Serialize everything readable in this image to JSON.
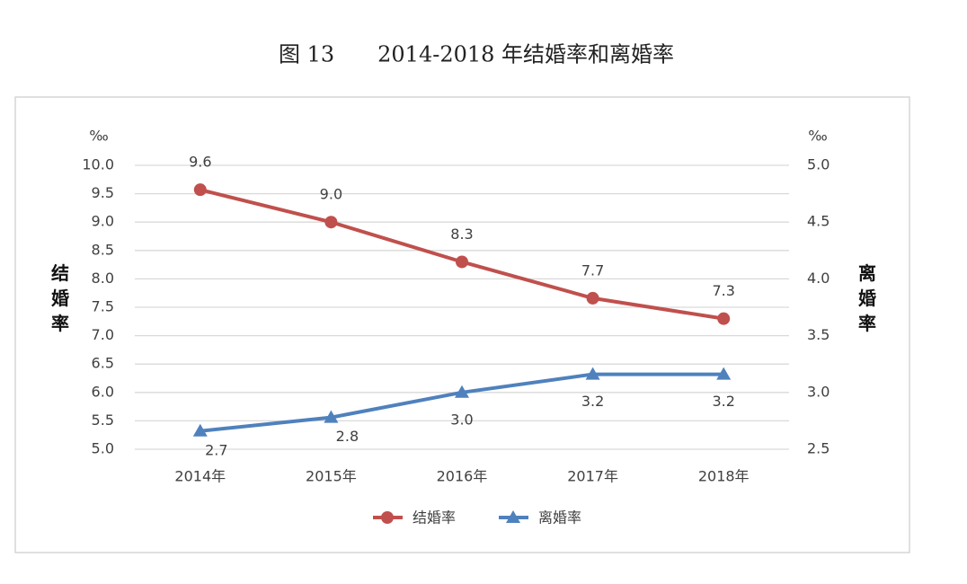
{
  "chart_data": {
    "type": "line",
    "title": "图 13　　2014-2018 年结婚率和离婚率",
    "ylabel": "结婚率",
    "y2label": "离婚率",
    "yunit": "‰",
    "y2unit": "‰",
    "categories": [
      "2014年",
      "2015年",
      "2016年",
      "2017年",
      "2018年"
    ],
    "series": [
      {
        "name": "结婚率",
        "color": "#c0504d",
        "marker": "circle",
        "values": [
          9.57,
          9.0,
          8.3,
          7.66,
          7.3
        ],
        "value_labels": [
          "9.6",
          "9.0",
          "8.3",
          "7.7",
          "7.3"
        ]
      },
      {
        "name": "离婚率",
        "color": "#4f81bd",
        "marker": "triangle",
        "axis": "y2",
        "values": [
          2.66,
          2.78,
          3.0,
          3.16,
          3.16
        ],
        "value_labels": [
          "2.7",
          "2.8",
          "3.0",
          "3.2",
          "3.2"
        ]
      }
    ],
    "ylim": [
      5,
      10
    ],
    "yticks": [
      {
        "value": 5,
        "label": "5.0"
      },
      5.5,
      {
        "value": 6,
        "label": "6.0"
      },
      6.5,
      {
        "value": 7,
        "label": "7.0"
      },
      7.5,
      {
        "value": 8,
        "label": "8.0"
      },
      8.5,
      {
        "value": 9,
        "label": "9.0"
      },
      9.5,
      {
        "value": 10,
        "label": "10.0"
      }
    ],
    "y2lim": [
      2.5,
      5
    ],
    "y2ticks": [
      2.5,
      {
        "value": 3,
        "label": "3.0"
      },
      3.5,
      {
        "value": 4,
        "label": "4.0"
      },
      4.5,
      {
        "value": 5,
        "label": "5.0"
      }
    ],
    "grid": true,
    "legend": "bottom"
  }
}
